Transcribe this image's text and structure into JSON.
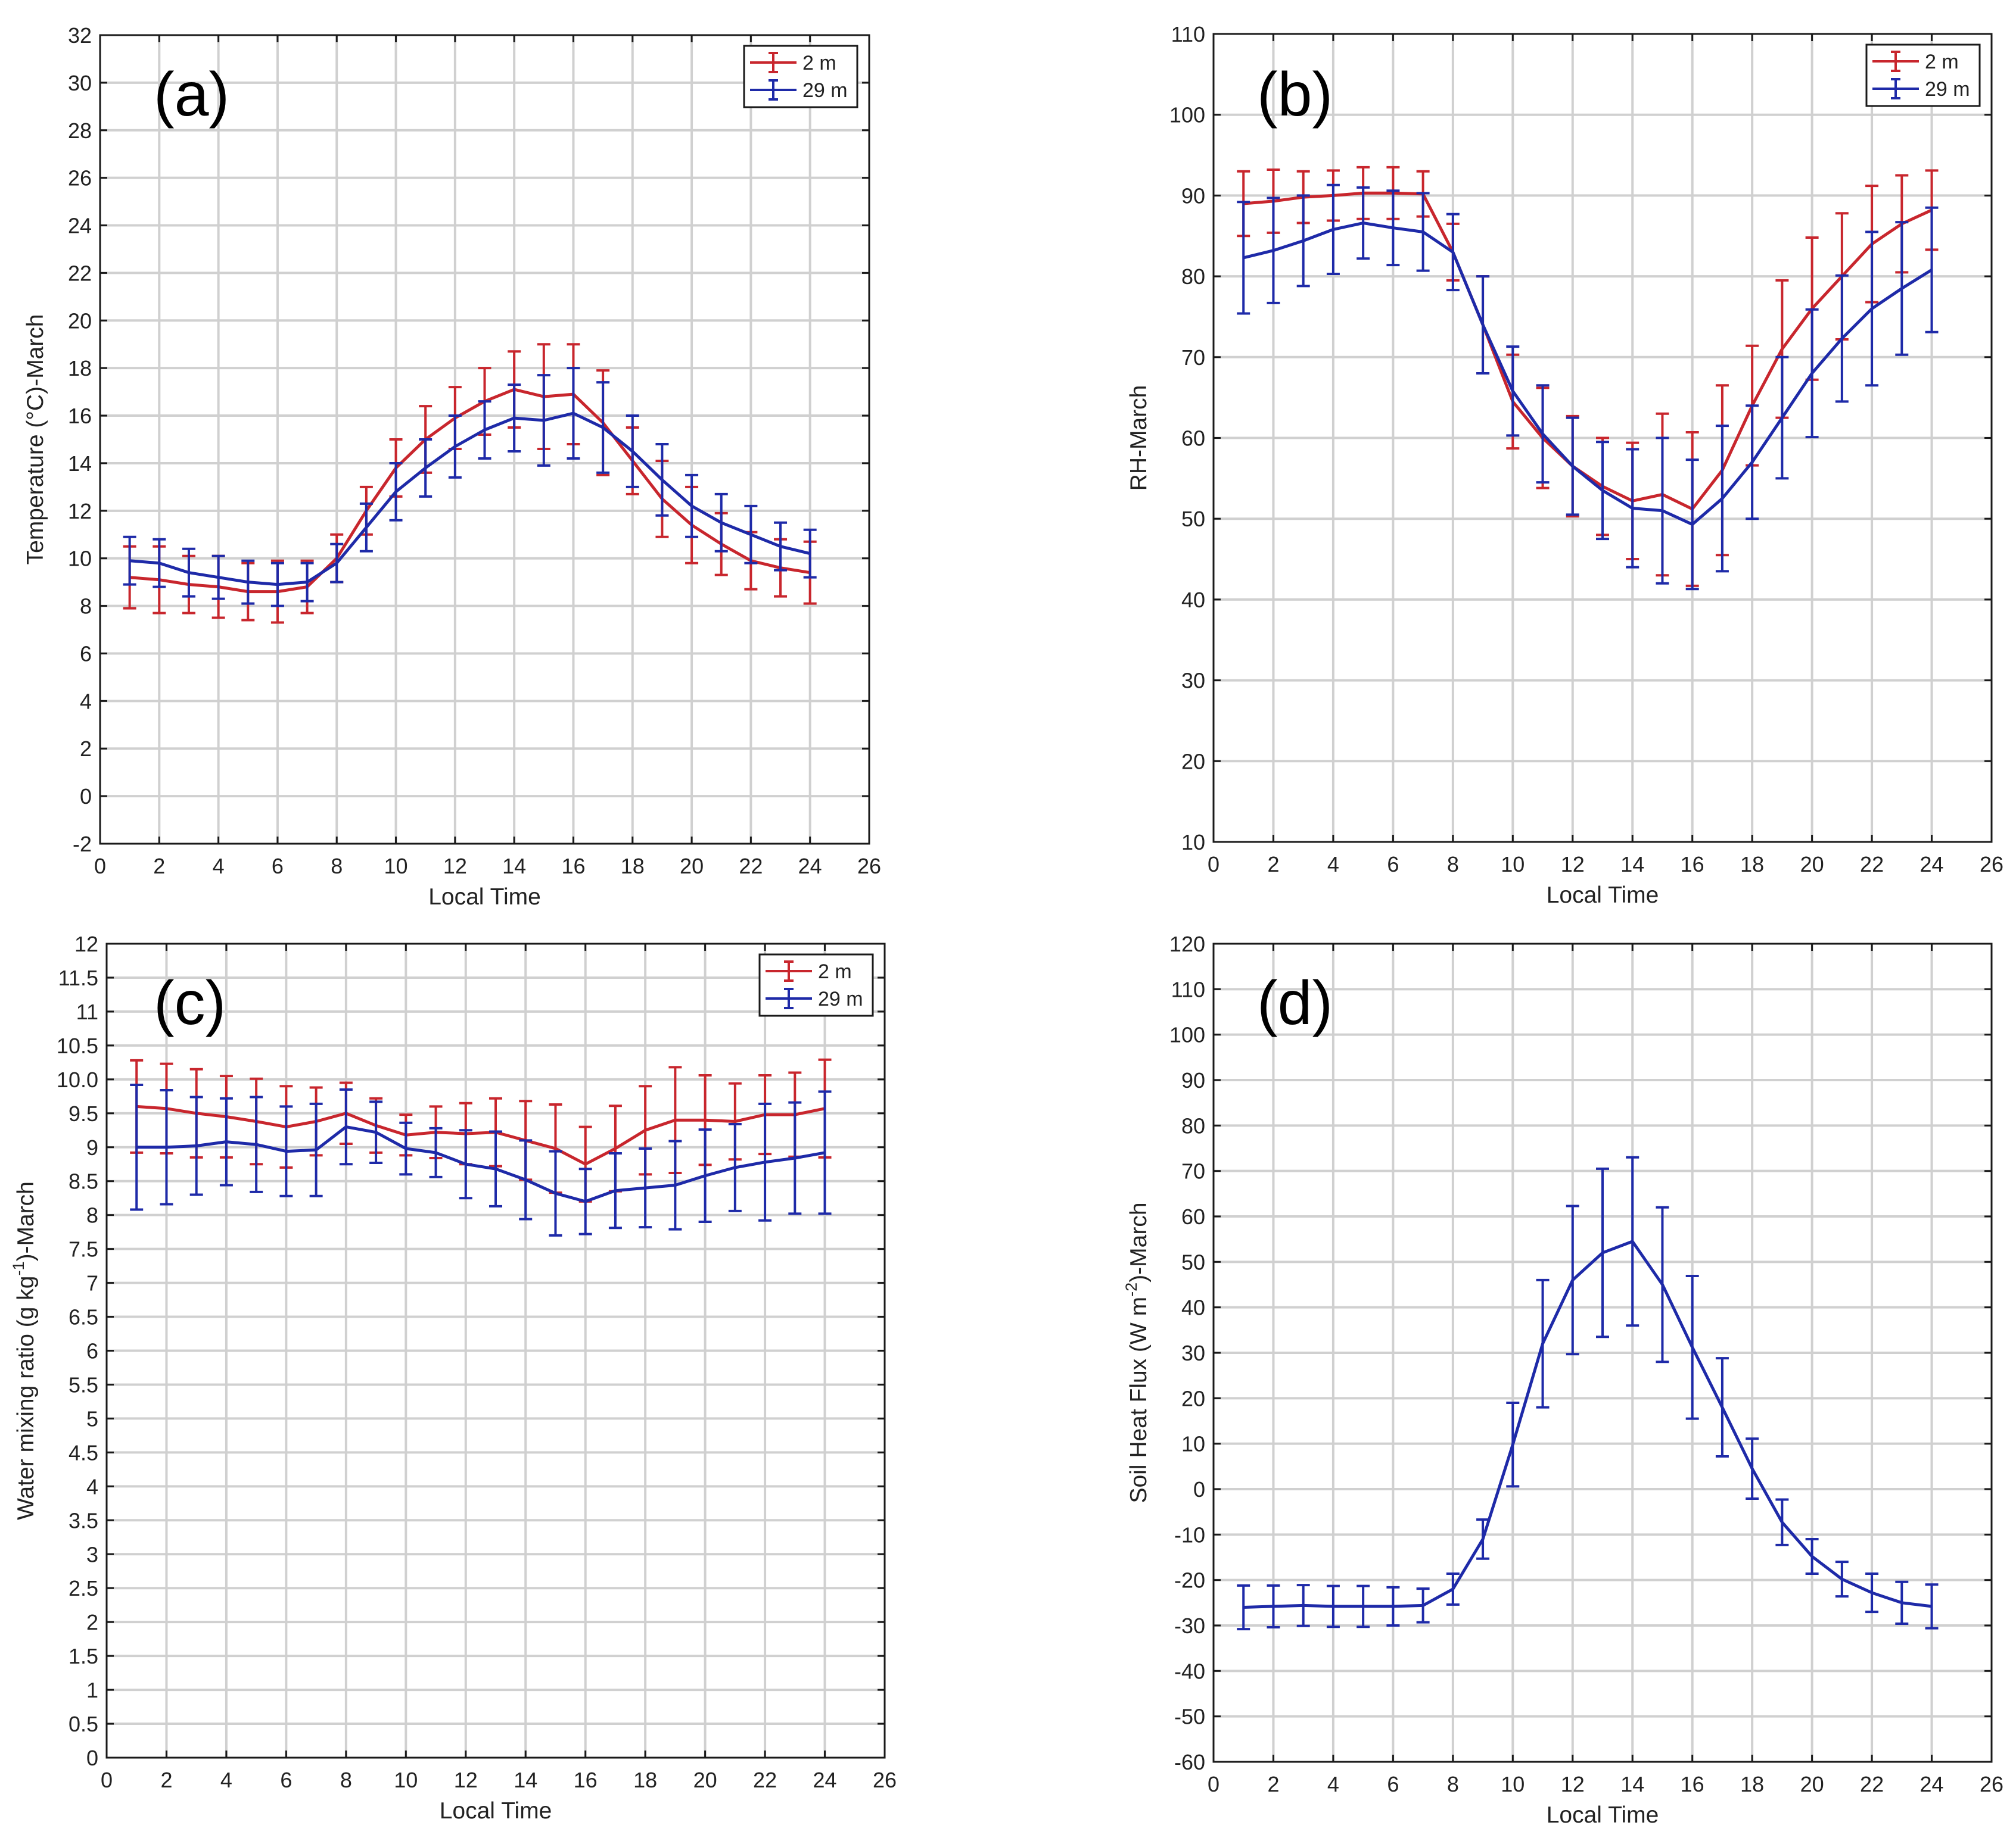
{
  "chart_data": [
    {
      "type": "line",
      "panel_label": "(a)",
      "title": "",
      "xlabel": "Local Time",
      "ylabel": "Temperature (°C)-March",
      "xlim": [
        0,
        26
      ],
      "ylim": [
        -2,
        32
      ],
      "x_ticks": [
        0,
        2,
        4,
        6,
        8,
        10,
        12,
        14,
        16,
        18,
        20,
        22,
        24,
        26
      ],
      "y_ticks": [
        -2,
        0,
        2,
        4,
        6,
        8,
        10,
        12,
        14,
        16,
        18,
        20,
        22,
        24,
        26,
        28,
        30,
        32
      ],
      "x_tick_labels": [
        "0",
        "2",
        "4",
        "6",
        "8",
        "10",
        "12",
        "14",
        "16",
        "18",
        "20",
        "22",
        "24",
        "26"
      ],
      "y_tick_labels": [
        "-2",
        "0",
        "2",
        "4",
        "6",
        "8",
        "10",
        "12",
        "14",
        "16",
        "18",
        "20",
        "22",
        "24",
        "26",
        "28",
        "30",
        "32"
      ],
      "grid": true,
      "legend": "top-right",
      "x": [
        1,
        2,
        3,
        4,
        5,
        6,
        7,
        8,
        9,
        10,
        11,
        12,
        13,
        14,
        15,
        16,
        17,
        18,
        19,
        20,
        21,
        22,
        23,
        24
      ],
      "series": [
        {
          "name": "2 m",
          "color": "#c8262d",
          "values": [
            9.2,
            9.1,
            8.9,
            8.8,
            8.6,
            8.6,
            8.8,
            10.0,
            12.0,
            13.8,
            15.0,
            15.9,
            16.6,
            17.1,
            16.8,
            16.9,
            15.7,
            14.1,
            12.5,
            11.4,
            10.6,
            9.9,
            9.6,
            9.4
          ],
          "errors": [
            1.3,
            1.4,
            1.2,
            1.3,
            1.2,
            1.3,
            1.1,
            1.0,
            1.0,
            1.2,
            1.4,
            1.3,
            1.4,
            1.6,
            2.2,
            2.1,
            2.2,
            1.4,
            1.6,
            1.6,
            1.3,
            1.2,
            1.2,
            1.3
          ]
        },
        {
          "name": "29 m",
          "color": "#1e2aa8",
          "values": [
            9.9,
            9.8,
            9.4,
            9.2,
            9.0,
            8.9,
            9.0,
            9.8,
            11.3,
            12.8,
            13.8,
            14.7,
            15.4,
            15.9,
            15.8,
            16.1,
            15.5,
            14.5,
            13.3,
            12.2,
            11.5,
            11.0,
            10.5,
            10.2
          ],
          "errors": [
            1.0,
            1.0,
            1.0,
            0.9,
            0.9,
            0.9,
            0.8,
            0.8,
            1.0,
            1.2,
            1.2,
            1.3,
            1.2,
            1.4,
            1.9,
            1.9,
            1.9,
            1.5,
            1.5,
            1.3,
            1.2,
            1.2,
            1.0,
            1.0
          ]
        }
      ]
    },
    {
      "type": "line",
      "panel_label": "(b)",
      "title": "",
      "xlabel": "Local Time",
      "ylabel": "RH-March",
      "xlim": [
        0,
        26
      ],
      "ylim": [
        10,
        110
      ],
      "x_ticks": [
        0,
        2,
        4,
        6,
        8,
        10,
        12,
        14,
        16,
        18,
        20,
        22,
        24,
        26
      ],
      "y_ticks": [
        10,
        20,
        30,
        40,
        50,
        60,
        70,
        80,
        90,
        100,
        110
      ],
      "x_tick_labels": [
        "0",
        "2",
        "4",
        "6",
        "8",
        "10",
        "12",
        "14",
        "16",
        "18",
        "20",
        "22",
        "24",
        "26"
      ],
      "y_tick_labels": [
        "10",
        "20",
        "30",
        "40",
        "50",
        "60",
        "70",
        "80",
        "90",
        "100",
        "110"
      ],
      "grid": true,
      "legend": "top-right",
      "x": [
        1,
        2,
        3,
        4,
        5,
        6,
        7,
        8,
        9,
        10,
        11,
        12,
        13,
        14,
        15,
        16,
        17,
        18,
        19,
        20,
        21,
        22,
        23,
        24
      ],
      "series": [
        {
          "name": "2 m",
          "color": "#c8262d",
          "values": [
            89.0,
            89.3,
            89.8,
            90.0,
            90.3,
            90.3,
            90.2,
            83.0,
            74.0,
            64.5,
            60.0,
            56.5,
            54.0,
            52.2,
            53.0,
            51.2,
            56.0,
            64.0,
            71.0,
            76.0,
            80.0,
            84.0,
            86.5,
            88.2
          ],
          "errors": [
            4.0,
            3.9,
            3.2,
            3.1,
            3.2,
            3.2,
            2.8,
            3.5,
            6.0,
            5.8,
            6.2,
            6.2,
            6.0,
            7.2,
            10.0,
            9.5,
            10.5,
            7.4,
            8.5,
            8.8,
            7.8,
            7.2,
            6.0,
            4.9
          ]
        },
        {
          "name": "29 m",
          "color": "#1e2aa8",
          "values": [
            82.3,
            83.2,
            84.4,
            85.8,
            86.6,
            86.0,
            85.5,
            83.0,
            74.0,
            65.8,
            60.5,
            56.5,
            53.5,
            51.3,
            51.0,
            49.3,
            52.5,
            57.0,
            62.5,
            68.0,
            72.3,
            76.0,
            78.5,
            80.8
          ],
          "errors": [
            6.9,
            6.5,
            5.6,
            5.5,
            4.4,
            4.6,
            4.8,
            4.7,
            6.0,
            5.5,
            6.0,
            6.0,
            6.0,
            7.3,
            9.0,
            8.0,
            9.0,
            7.0,
            7.5,
            7.9,
            7.8,
            9.5,
            8.2,
            7.7
          ]
        }
      ]
    },
    {
      "type": "line",
      "panel_label": "(c)",
      "title": "",
      "xlabel": "Local Time",
      "ylabel_main": "Water mixing ratio (g kg",
      "ylabel_sup": "-1",
      "ylabel_end": ")-March",
      "xlim": [
        0,
        26
      ],
      "ylim": [
        0,
        12
      ],
      "x_ticks": [
        0,
        2,
        4,
        6,
        8,
        10,
        12,
        14,
        16,
        18,
        20,
        22,
        24,
        26
      ],
      "y_ticks": [
        0,
        0.5,
        1,
        1.5,
        2,
        2.5,
        3,
        3.5,
        4,
        4.5,
        5,
        5.5,
        6,
        6.5,
        7,
        7.5,
        8,
        8.5,
        9,
        9.5,
        10,
        10.5,
        11,
        11.5,
        12
      ],
      "x_tick_labels": [
        "0",
        "2",
        "4",
        "6",
        "8",
        "10",
        "12",
        "14",
        "16",
        "18",
        "20",
        "22",
        "24",
        "26"
      ],
      "y_tick_labels": [
        "0",
        "0.5",
        "1",
        "1.5",
        "2",
        "2.5",
        "3",
        "3.5",
        "4",
        "4.5",
        "5",
        "5.5",
        "6",
        "6.5",
        "7",
        "7.5",
        "8",
        "8.5",
        "9",
        "9.5",
        "10.0",
        "10.5",
        "11",
        "11.5",
        "12"
      ],
      "grid": true,
      "legend": "top-right",
      "x": [
        1,
        2,
        3,
        4,
        5,
        6,
        7,
        8,
        9,
        10,
        11,
        12,
        13,
        14,
        15,
        16,
        17,
        18,
        19,
        20,
        21,
        22,
        23,
        24
      ],
      "series": [
        {
          "name": "2 m",
          "color": "#c8262d",
          "values": [
            9.6,
            9.57,
            9.5,
            9.45,
            9.38,
            9.3,
            9.38,
            9.5,
            9.32,
            9.18,
            9.22,
            9.2,
            9.22,
            9.1,
            8.98,
            8.75,
            8.98,
            9.25,
            9.4,
            9.4,
            9.38,
            9.48,
            9.48,
            9.57
          ],
          "errors": [
            0.68,
            0.66,
            0.65,
            0.6,
            0.63,
            0.6,
            0.5,
            0.45,
            0.4,
            0.3,
            0.38,
            0.45,
            0.5,
            0.58,
            0.65,
            0.55,
            0.63,
            0.65,
            0.78,
            0.66,
            0.56,
            0.58,
            0.62,
            0.72
          ]
        },
        {
          "name": "29 m",
          "color": "#1e2aa8",
          "values": [
            9.0,
            9.0,
            9.02,
            9.08,
            9.04,
            8.94,
            8.96,
            9.3,
            9.22,
            8.98,
            8.92,
            8.75,
            8.68,
            8.52,
            8.32,
            8.2,
            8.36,
            8.4,
            8.44,
            8.58,
            8.7,
            8.78,
            8.84,
            8.92
          ],
          "errors": [
            0.92,
            0.84,
            0.72,
            0.64,
            0.7,
            0.66,
            0.68,
            0.55,
            0.45,
            0.38,
            0.36,
            0.5,
            0.55,
            0.58,
            0.62,
            0.48,
            0.55,
            0.58,
            0.65,
            0.68,
            0.64,
            0.86,
            0.82,
            0.9
          ]
        }
      ]
    },
    {
      "type": "line",
      "panel_label": "(d)",
      "title": "",
      "xlabel": "Local Time",
      "ylabel_main": "Soil Heat Flux (W m",
      "ylabel_sup": "-2",
      "ylabel_end": ")-March",
      "xlim": [
        0,
        26
      ],
      "ylim": [
        -60,
        120
      ],
      "x_ticks": [
        0,
        2,
        4,
        6,
        8,
        10,
        12,
        14,
        16,
        18,
        20,
        22,
        24,
        26
      ],
      "y_ticks": [
        -60,
        -50,
        -40,
        -30,
        -20,
        -10,
        0,
        10,
        20,
        30,
        40,
        50,
        60,
        70,
        80,
        90,
        100,
        110,
        120
      ],
      "x_tick_labels": [
        "0",
        "2",
        "4",
        "6",
        "8",
        "10",
        "12",
        "14",
        "16",
        "18",
        "20",
        "22",
        "24",
        "26"
      ],
      "y_tick_labels": [
        "-60",
        "-50",
        "-40",
        "-30",
        "-20",
        "-10",
        "0",
        "10",
        "20",
        "30",
        "40",
        "50",
        "60",
        "70",
        "80",
        "90",
        "100",
        "110",
        "120"
      ],
      "grid": true,
      "legend": "none",
      "x": [
        1,
        2,
        3,
        4,
        5,
        6,
        7,
        8,
        9,
        10,
        11,
        12,
        13,
        14,
        15,
        16,
        17,
        18,
        19,
        20,
        21,
        22,
        23,
        24
      ],
      "series": [
        {
          "name": "Soil Heat Flux",
          "color": "#1e2aa8",
          "values": [
            -26.0,
            -25.8,
            -25.6,
            -25.8,
            -25.8,
            -25.8,
            -25.6,
            -22.0,
            -11.0,
            9.8,
            32.0,
            46.0,
            52.0,
            54.5,
            45.0,
            31.2,
            18.0,
            4.5,
            -7.3,
            -14.8,
            -19.8,
            -22.8,
            -25.0,
            -25.8
          ],
          "errors": [
            4.8,
            4.6,
            4.5,
            4.5,
            4.5,
            4.2,
            3.7,
            3.4,
            4.3,
            9.2,
            14.0,
            16.3,
            18.5,
            18.5,
            17.0,
            15.7,
            10.8,
            6.6,
            5.0,
            3.8,
            3.8,
            4.2,
            4.6,
            4.8
          ]
        }
      ]
    }
  ]
}
